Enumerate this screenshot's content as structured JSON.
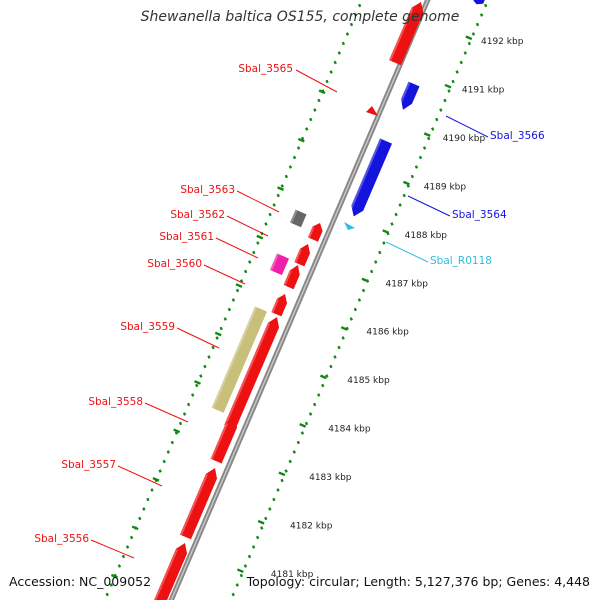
{
  "title": "Shewanella baltica OS155, complete genome",
  "footer": {
    "accession": "Accession: NC_009052",
    "summary": "Topology: circular; Length: 5,127,376 bp; Genes: 4,448"
  },
  "colors": {
    "forward_gene": "#ee1111",
    "reverse_gene": "#1414dd",
    "rna": "#33bbdd",
    "pseudo": "#666666",
    "pink": "#ee22aa",
    "olive": "#c8bf7a",
    "backbone": "#888888",
    "scale": "#118811"
  },
  "scale_labels": [
    "4192 kbp",
    "4191 kbp",
    "4190 kbp",
    "4189 kbp",
    "4188 kbp",
    "4187 kbp",
    "4186 kbp",
    "4185 kbp",
    "4184 kbp",
    "4183 kbp",
    "4182 kbp",
    "4181 kbp"
  ],
  "gene_labels": {
    "left": [
      "Sbal_3565",
      "Sbal_3563",
      "Sbal_3562",
      "Sbal_3561",
      "Sbal_3560",
      "Sbal_3559",
      "Sbal_3558",
      "Sbal_3557",
      "Sbal_3556"
    ],
    "right": [
      "Sbal_3566",
      "Sbal_3564",
      "Sbal_R0118"
    ]
  }
}
